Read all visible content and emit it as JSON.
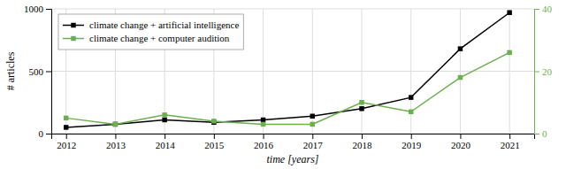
{
  "chart_data": {
    "type": "line",
    "xlabel": "time [years]",
    "ylabel": "# articles",
    "x": [
      2012,
      2013,
      2014,
      2015,
      2016,
      2017,
      2018,
      2019,
      2020,
      2021
    ],
    "xlim": [
      2011.7,
      2021.5
    ],
    "xticks": [
      2012,
      2013,
      2014,
      2015,
      2016,
      2017,
      2018,
      2019,
      2020,
      2021
    ],
    "ylim": [
      0,
      1000
    ],
    "yticks": [
      0,
      500,
      1000
    ],
    "y2lim": [
      0,
      40
    ],
    "y2ticks": [
      0,
      20,
      40
    ],
    "grid": true,
    "legend": "upper left",
    "marker": "square",
    "series": [
      {
        "name": "climate change + artificial intelligence",
        "color": "#000000",
        "values": [
          50,
          75,
          110,
          90,
          110,
          140,
          200,
          290,
          680,
          970
        ]
      },
      {
        "name": "climate change + computer audition",
        "color": "#6ab04c",
        "axis": "y2",
        "values": [
          5,
          3,
          6,
          4,
          3,
          3,
          10,
          7,
          18,
          26
        ]
      }
    ]
  }
}
